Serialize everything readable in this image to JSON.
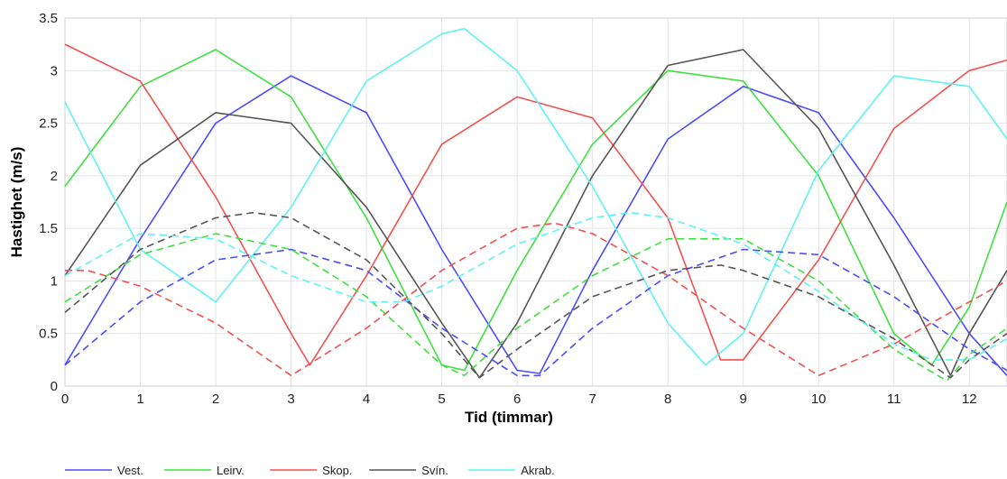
{
  "chart_data": {
    "type": "line",
    "xlabel": "Tid (timmar)",
    "ylabel": "Hastighet (m/s)",
    "xlim": [
      0,
      12.5
    ],
    "ylim": [
      0,
      3.5
    ],
    "xticks": [
      "0",
      "1",
      "2",
      "3",
      "4",
      "5",
      "6",
      "7",
      "8",
      "9",
      "10",
      "11",
      "12"
    ],
    "yticks": [
      "0",
      "0.5",
      "1",
      "1.5",
      "2",
      "2.5",
      "3",
      "3.5"
    ],
    "grid": true,
    "legend_position": "bottom",
    "series": [
      {
        "name": "Vest.",
        "color": "#4b4bff",
        "style": "solid",
        "x": [
          0,
          1,
          2,
          3,
          4,
          5,
          6,
          6.3,
          7,
          8,
          9,
          10,
          11,
          12,
          12.5
        ],
        "y": [
          0.2,
          1.4,
          2.5,
          2.95,
          2.6,
          1.3,
          0.15,
          0.12,
          1.1,
          2.35,
          2.85,
          2.6,
          1.6,
          0.5,
          0.1
        ]
      },
      {
        "name": "Leirv.",
        "color": "#3ee03e",
        "style": "solid",
        "x": [
          0,
          1,
          2,
          3,
          4,
          5,
          5.3,
          6,
          7,
          8,
          9,
          10,
          11,
          11.5,
          12,
          12.5
        ],
        "y": [
          1.9,
          2.85,
          3.2,
          2.75,
          1.6,
          0.2,
          0.15,
          1.1,
          2.3,
          3.0,
          2.9,
          2.0,
          0.5,
          0.2,
          0.75,
          1.75
        ]
      },
      {
        "name": "Skop.",
        "color": "#f05050",
        "style": "solid",
        "x": [
          0,
          1,
          2,
          3,
          3.25,
          4,
          5,
          6,
          7,
          8,
          8.7,
          9,
          10,
          11,
          12,
          12.5
        ],
        "y": [
          3.25,
          2.9,
          1.8,
          0.5,
          0.2,
          1.05,
          2.3,
          2.75,
          2.55,
          1.6,
          0.25,
          0.25,
          1.2,
          2.45,
          3.0,
          3.1
        ]
      },
      {
        "name": "Svín.",
        "color": "#555555",
        "style": "solid",
        "x": [
          0,
          1,
          2,
          3,
          4,
          5,
          5.5,
          6,
          7,
          8,
          9,
          10,
          11,
          11.75,
          12,
          12.5
        ],
        "y": [
          1.05,
          2.1,
          2.6,
          2.5,
          1.7,
          0.6,
          0.08,
          0.6,
          2.0,
          3.05,
          3.2,
          2.45,
          1.15,
          0.1,
          0.5,
          1.1
        ]
      },
      {
        "name": "Akrab.",
        "color": "#5ff2f2",
        "style": "solid",
        "x": [
          0,
          0.5,
          1,
          2,
          3,
          4,
          5,
          5.3,
          6,
          7,
          8,
          8.5,
          9,
          10,
          11,
          12,
          12.5
        ],
        "y": [
          2.7,
          2.0,
          1.3,
          0.8,
          1.7,
          2.9,
          3.35,
          3.4,
          3.0,
          1.9,
          0.6,
          0.2,
          0.5,
          2.05,
          2.95,
          2.85,
          2.35
        ]
      },
      {
        "name": "Vest. (streckad)",
        "color": "#4b4bff",
        "style": "dashed",
        "x": [
          0,
          1,
          2,
          3,
          4,
          5,
          6,
          6.3,
          7,
          8,
          9,
          10,
          11,
          12,
          12.5
        ],
        "y": [
          0.2,
          0.8,
          1.2,
          1.3,
          1.1,
          0.55,
          0.1,
          0.1,
          0.55,
          1.05,
          1.3,
          1.25,
          0.85,
          0.35,
          0.15
        ]
      },
      {
        "name": "Leirv. (streckad)",
        "color": "#3ee03e",
        "style": "dashed",
        "x": [
          0,
          1,
          2,
          3,
          4,
          5,
          5.3,
          6,
          7,
          8,
          9,
          10,
          11,
          11.7,
          12,
          12.5
        ],
        "y": [
          0.8,
          1.25,
          1.45,
          1.3,
          0.85,
          0.2,
          0.1,
          0.55,
          1.05,
          1.4,
          1.4,
          1.0,
          0.35,
          0.05,
          0.3,
          0.55
        ]
      },
      {
        "name": "Skop. (streckad)",
        "color": "#f05050",
        "style": "dashed",
        "x": [
          0,
          0.3,
          1,
          2,
          3,
          4,
          5,
          6,
          6.5,
          7,
          8,
          9,
          10,
          11,
          12,
          12.5
        ],
        "y": [
          1.1,
          1.1,
          0.95,
          0.6,
          0.1,
          0.55,
          1.1,
          1.5,
          1.55,
          1.45,
          1.05,
          0.55,
          0.1,
          0.4,
          0.8,
          1.0
        ]
      },
      {
        "name": "Svín. (streckad)",
        "color": "#555555",
        "style": "dashed",
        "x": [
          0,
          1,
          2,
          2.5,
          3,
          4,
          5,
          5.5,
          6,
          7,
          8,
          8.7,
          9,
          10,
          11,
          11.75,
          12,
          12.5
        ],
        "y": [
          0.7,
          1.3,
          1.6,
          1.65,
          1.6,
          1.2,
          0.5,
          0.08,
          0.35,
          0.85,
          1.1,
          1.15,
          1.1,
          0.85,
          0.45,
          0.08,
          0.25,
          0.5
        ]
      },
      {
        "name": "Akrab. (streckad)",
        "color": "#5ff2f2",
        "style": "dashed",
        "x": [
          0,
          1,
          2,
          3,
          4,
          4.5,
          5,
          6,
          7,
          7.5,
          8,
          9,
          10,
          11,
          11.5,
          12,
          12.5
        ],
        "y": [
          1.05,
          1.45,
          1.4,
          1.05,
          0.8,
          0.8,
          0.95,
          1.35,
          1.6,
          1.65,
          1.6,
          1.35,
          0.9,
          0.4,
          0.25,
          0.25,
          0.45
        ]
      }
    ],
    "legend": [
      {
        "label": "Vest.",
        "color": "#4b4bff"
      },
      {
        "label": "Leirv.",
        "color": "#3ee03e"
      },
      {
        "label": "Skop.",
        "color": "#f05050"
      },
      {
        "label": "Svín.",
        "color": "#555555"
      },
      {
        "label": "Akrab.",
        "color": "#5ff2f2"
      }
    ]
  }
}
